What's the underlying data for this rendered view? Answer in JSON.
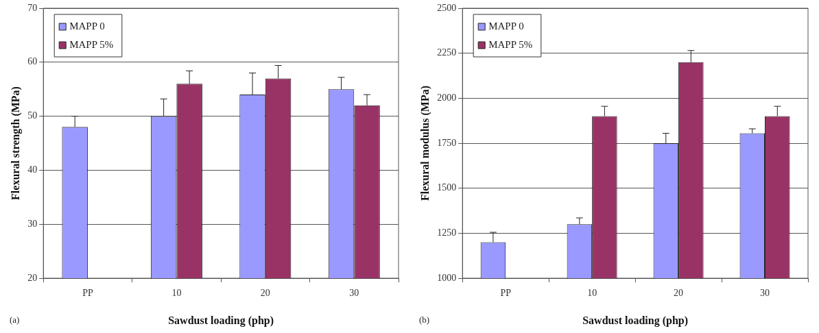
{
  "chart_data": [
    {
      "type": "bar",
      "xlabel": "Sawdust loading (php)",
      "ylabel": "Flexural strength (MPa)",
      "categories": [
        "PP",
        "10",
        "20",
        "30"
      ],
      "series": [
        {
          "name": "MAPP 0",
          "color": "#9999ff",
          "values": [
            48,
            50,
            54,
            55
          ],
          "errors": [
            [
              48,
              50
            ],
            [
              50,
              53.2
            ],
            [
              54,
              58
            ],
            [
              55,
              57.2
            ]
          ]
        },
        {
          "name": "MAPP 5%",
          "color": "#993366",
          "values": [
            null,
            56,
            57,
            52
          ],
          "errors": [
            null,
            [
              56,
              58.4
            ],
            [
              57,
              59.4
            ],
            [
              52,
              54
            ]
          ]
        }
      ],
      "ylim": [
        20,
        70
      ],
      "yticks": [
        20,
        30,
        40,
        50,
        60,
        70
      ],
      "grid": "y",
      "legend": "top left",
      "annotations": [
        "(a)"
      ]
    },
    {
      "type": "bar",
      "xlabel": "Sawdust loading (php)",
      "ylabel": "Flexural modulus (MPa)",
      "categories": [
        "PP",
        "10",
        "20",
        "30"
      ],
      "series": [
        {
          "name": "MAPP 0",
          "color": "#9999ff",
          "values": [
            1200,
            1300,
            1750,
            1805
          ],
          "errors": [
            [
              1200,
              1255
            ],
            [
              1300,
              1335
            ],
            [
              1750,
              1805
            ],
            [
              1805,
              1830
            ]
          ]
        },
        {
          "name": "MAPP 5%",
          "color": "#993366",
          "values": [
            null,
            1900,
            2200,
            1900
          ],
          "errors": [
            null,
            [
              1900,
              1955
            ],
            [
              2200,
              2265
            ],
            [
              1900,
              1955
            ]
          ]
        }
      ],
      "ylim": [
        1000,
        2500
      ],
      "yticks": [
        1000,
        1250,
        1500,
        1750,
        2000,
        2250,
        2500
      ],
      "grid": "y",
      "legend": "top left",
      "annotations": [
        "(b)"
      ]
    }
  ]
}
